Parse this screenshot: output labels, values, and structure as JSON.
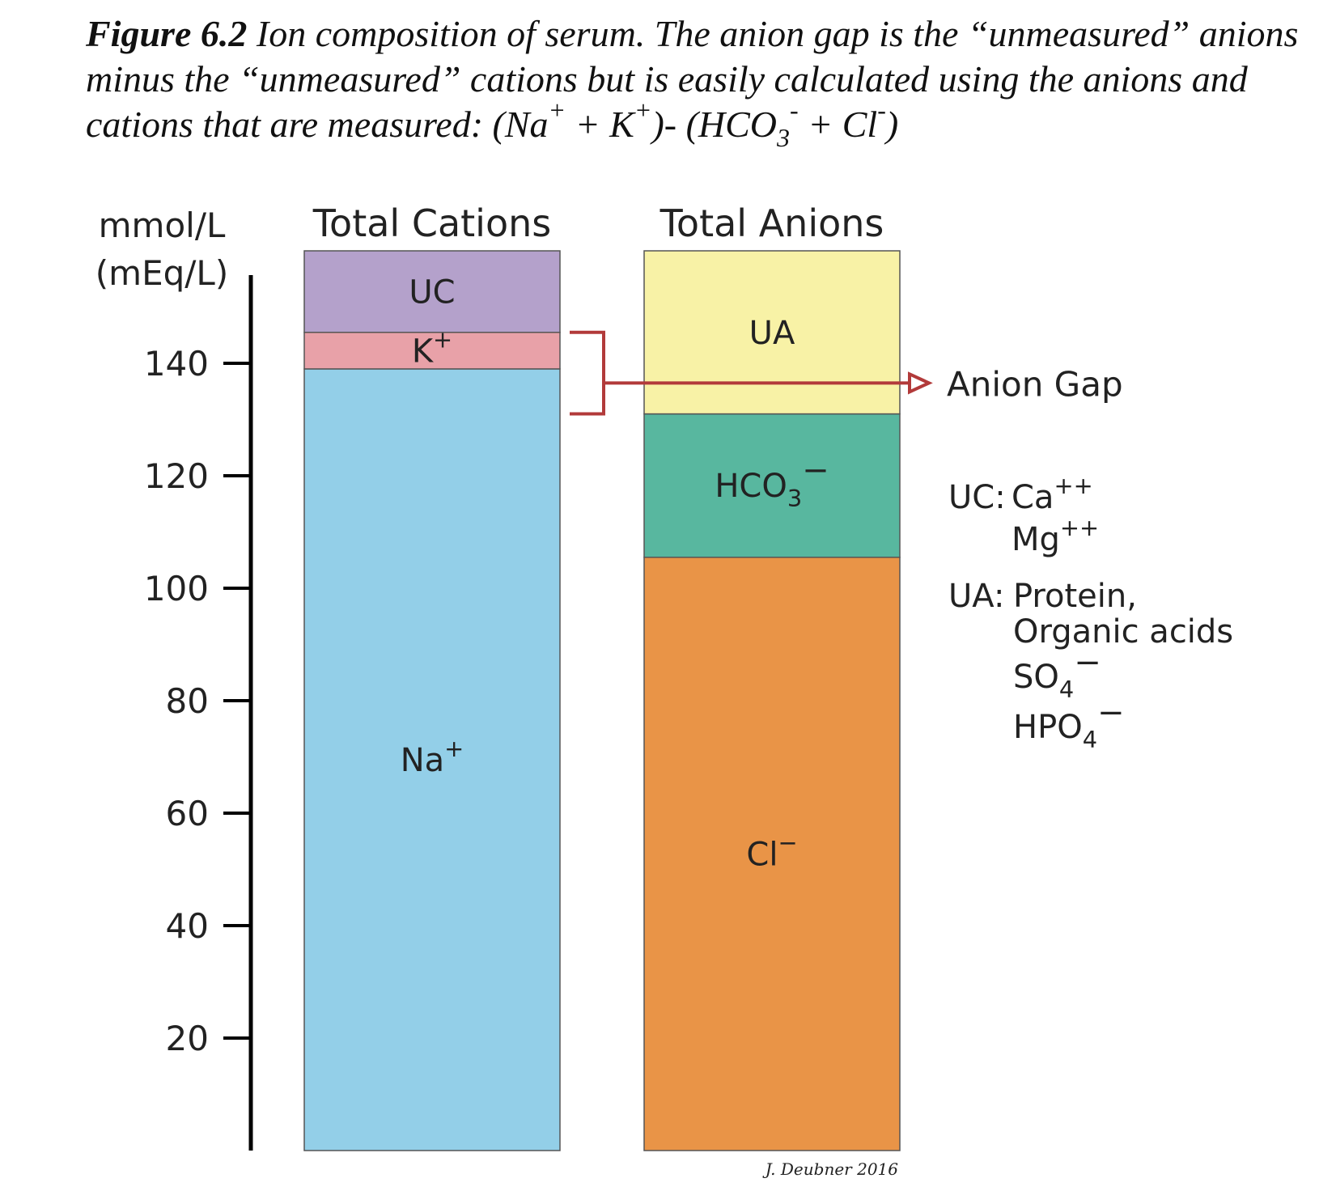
{
  "caption": {
    "label": "Figure 6.2",
    "text_1": "Ion composition of serum. The anion gap is the “unmeasured” anions minus the “unmeasured” cations but is easily calculated using the anions and cations that are measured: (Na",
    "sup_na": "+",
    "text_2": " + K",
    "sup_k": "+",
    "text_3": ")- (HCO",
    "sub_hco3": "3",
    "sup_hco3": "-",
    "text_4": " + Cl",
    "sup_cl": "-",
    "text_5": ")"
  },
  "chart_data": {
    "type": "bar",
    "stacked": true,
    "ylabel": [
      "mmol/L",
      "(mEq/L)"
    ],
    "ylim": [
      0,
      160
    ],
    "yticks": [
      20,
      40,
      60,
      80,
      100,
      120,
      140
    ],
    "columns": [
      {
        "name": "Total Cations",
        "segments": [
          {
            "label": "Na",
            "sup": "+",
            "value": 139,
            "color": "#93cfe8"
          },
          {
            "label": "K",
            "sup": "+",
            "value": 6.5,
            "color": "#e8a1a8"
          },
          {
            "label": "UC",
            "sup": "",
            "value": 14.5,
            "color": "#b4a1cb"
          }
        ]
      },
      {
        "name": "Total Anions",
        "segments": [
          {
            "label": "Cl",
            "sup": "−",
            "value": 105.5,
            "color": "#e99447"
          },
          {
            "label": "HCO",
            "sub": "3",
            "sup": "−",
            "value": 25.5,
            "color": "#58b79f"
          },
          {
            "label": "UA",
            "sup": "",
            "value": 29,
            "color": "#f8f2a6"
          }
        ]
      }
    ],
    "annotation": {
      "label": "Anion Gap",
      "color": "#b23a3a"
    },
    "legend": {
      "uc_key": "UC:",
      "uc_items": [
        {
          "label": "Ca",
          "sup": "++"
        },
        {
          "label": "Mg",
          "sup": "++"
        }
      ],
      "ua_key": "UA:",
      "ua_items": [
        {
          "label": "Protein,",
          "sup": "",
          "sub": ""
        },
        {
          "label": "Organic acids",
          "sup": "",
          "sub": ""
        },
        {
          "label": "SO",
          "sub": "4",
          "sup": "−"
        },
        {
          "label": "HPO",
          "sub": "4",
          "sup": "−"
        }
      ]
    },
    "credit": "J. Deubner 2016"
  }
}
